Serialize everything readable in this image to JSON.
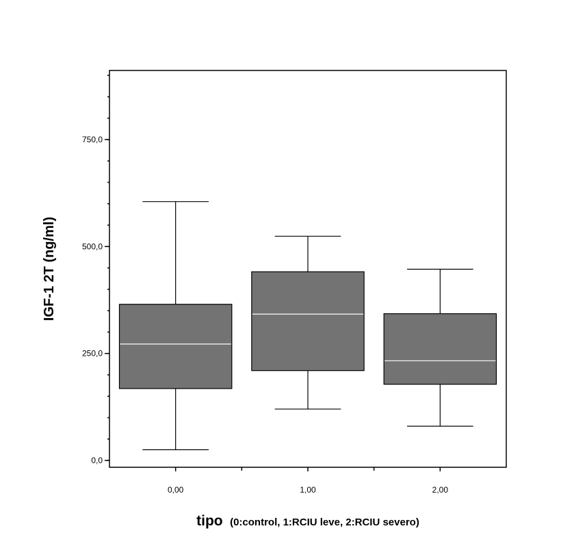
{
  "chart_data": {
    "type": "boxplot",
    "xlabel_main": "tipo",
    "xlabel_detail": "(0:control, 1:RCIU leve, 2:RCIU severo)",
    "ylabel": "IGF-1 2T (ng/ml)",
    "ylim": [
      0,
      900
    ],
    "yticks": [
      0,
      250,
      500,
      750
    ],
    "ytick_labels": [
      "0,0",
      "250,0",
      "500,0",
      "750,0"
    ],
    "categories": [
      "0,00",
      "1,00",
      "2,00"
    ],
    "boxes": [
      {
        "category": "0,00",
        "min": 25,
        "q1": 168,
        "median": 272,
        "q3": 365,
        "max": 605
      },
      {
        "category": "1,00",
        "min": 120,
        "q1": 210,
        "median": 342,
        "q3": 441,
        "max": 524
      },
      {
        "category": "2,00",
        "min": 80,
        "q1": 178,
        "median": 233,
        "q3": 343,
        "max": 447
      }
    ],
    "box_color": "#737373",
    "median_color": "#ffffff",
    "grid": false
  }
}
